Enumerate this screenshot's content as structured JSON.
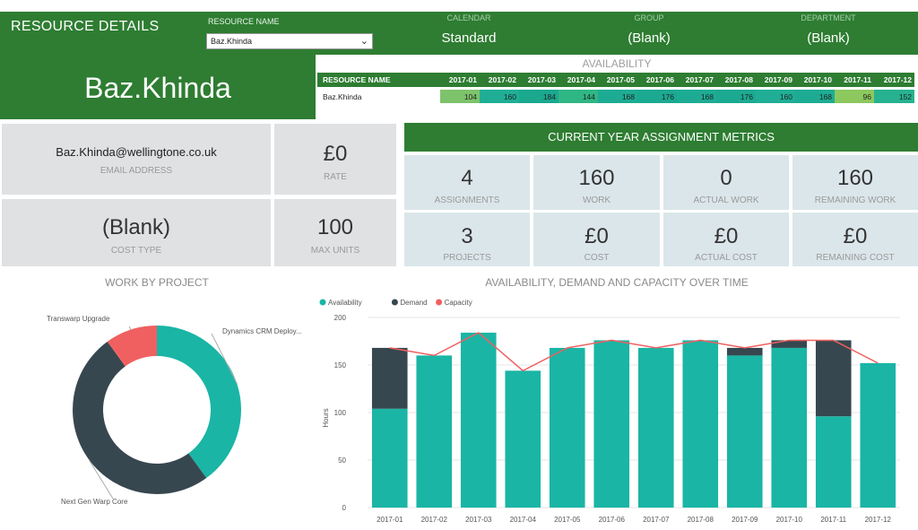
{
  "header": {
    "title": "RESOURCE DETAILS",
    "resource_name_label": "RESOURCE NAME",
    "resource_name_value": "Baz.Khinda",
    "big_name": "Baz.Khinda",
    "calendar_label": "CALENDAR",
    "calendar_value": "Standard",
    "group_label": "GROUP",
    "group_value": "(Blank)",
    "department_label": "DEPARTMENT",
    "department_value": "(Blank)"
  },
  "availability": {
    "title": "AVAILABILITY",
    "col_header": "RESOURCE NAME",
    "months": [
      "2017-01",
      "2017-02",
      "2017-03",
      "2017-04",
      "2017-05",
      "2017-06",
      "2017-07",
      "2017-08",
      "2017-09",
      "2017-10",
      "2017-11",
      "2017-12"
    ],
    "row_name": "Baz.Khinda",
    "values": [
      "104",
      "160",
      "184",
      "144",
      "168",
      "176",
      "168",
      "176",
      "160",
      "168",
      "96",
      "152"
    ]
  },
  "details": {
    "email": "Baz.Khinda@wellingtone.co.uk",
    "email_label": "EMAIL ADDRESS",
    "rate": "£0",
    "rate_label": "RATE",
    "cost_type": "(Blank)",
    "cost_type_label": "COST TYPE",
    "max_units": "100",
    "max_units_label": "MAX UNITS"
  },
  "metrics": {
    "title": "CURRENT YEAR ASSIGNMENT METRICS",
    "assignments": "4",
    "assignments_label": "ASSIGNMENTS",
    "work": "160",
    "work_label": "WORK",
    "actual_work": "0",
    "actual_work_label": "ACTUAL WORK",
    "remaining_work": "160",
    "remaining_work_label": "REMAINING WORK",
    "projects": "3",
    "projects_label": "PROJECTS",
    "cost": "£0",
    "cost_label": "COST",
    "actual_cost": "£0",
    "actual_cost_label": "ACTUAL COST",
    "remaining_cost": "£0",
    "remaining_cost_label": "REMAINING COST"
  },
  "colors": {
    "header_green": "#2e7d32",
    "availability": "#1ab5a5",
    "demand": "#37474f",
    "capacity": "#f06060",
    "cell_low": "#7dc36b",
    "cell_mid": "#20b08c"
  },
  "chart_data": [
    {
      "type": "pie",
      "title": "WORK BY PROJECT",
      "donut": true,
      "slices": [
        {
          "label": "Dynamics CRM Deploy...",
          "value": 40,
          "color": "#1ab5a5"
        },
        {
          "label": "Next Gen Warp Core",
          "value": 50,
          "color": "#37474f"
        },
        {
          "label": "Transwarp Upgrade",
          "value": 10,
          "color": "#f06060"
        }
      ]
    },
    {
      "type": "bar",
      "title": "AVAILABILITY, DEMAND AND CAPACITY OVER TIME",
      "ylabel": "Hours",
      "ylim": [
        0,
        200
      ],
      "yticks": [
        0,
        50,
        100,
        150,
        200
      ],
      "legend_position": "top-left",
      "stacked": true,
      "categories": [
        "2017-01",
        "2017-02",
        "2017-03",
        "2017-04",
        "2017-05",
        "2017-06",
        "2017-07",
        "2017-08",
        "2017-09",
        "2017-10",
        "2017-11",
        "2017-12"
      ],
      "series": [
        {
          "name": "Availability",
          "type": "bar",
          "color": "#1ab5a5",
          "values": [
            104,
            160,
            184,
            144,
            168,
            176,
            168,
            176,
            160,
            168,
            96,
            152
          ]
        },
        {
          "name": "Demand",
          "type": "bar",
          "color": "#37474f",
          "values": [
            64,
            0,
            0,
            0,
            0,
            0,
            0,
            0,
            8,
            8,
            80,
            0
          ]
        },
        {
          "name": "Capacity",
          "type": "line",
          "color": "#f06060",
          "values": [
            168,
            160,
            184,
            144,
            168,
            176,
            168,
            176,
            168,
            176,
            176,
            152
          ]
        }
      ]
    }
  ]
}
